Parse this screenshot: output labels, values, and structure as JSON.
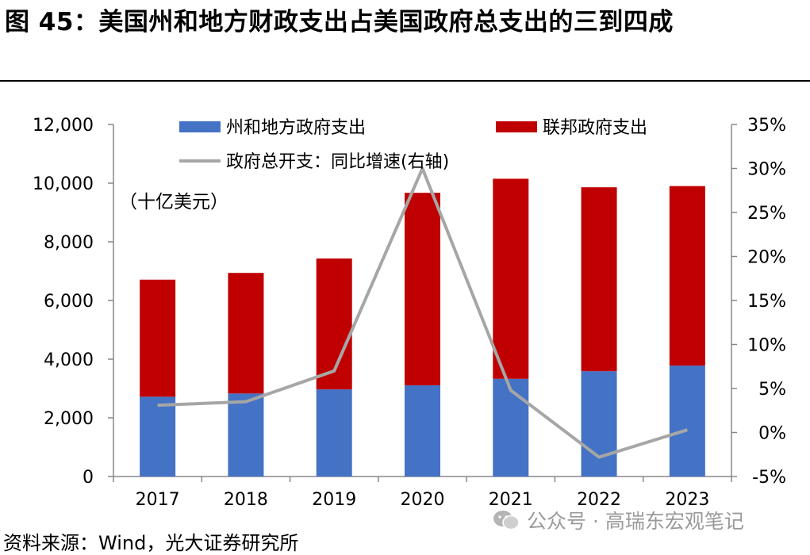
{
  "title": "图 45：美国州和地方财政支出占美国政府总支出的三到四成",
  "chart_data": {
    "type": "bar",
    "stacked": true,
    "categories": [
      "2017",
      "2018",
      "2019",
      "2020",
      "2021",
      "2022",
      "2023"
    ],
    "series": [
      {
        "name": "州和地方政府支出",
        "type": "bar",
        "axis": "left",
        "color": "#4472C4",
        "values": [
          2720,
          2830,
          2970,
          3110,
          3330,
          3590,
          3780
        ]
      },
      {
        "name": "联邦政府支出",
        "type": "bar",
        "axis": "left",
        "color": "#C00000",
        "values": [
          3990,
          4110,
          4460,
          6560,
          6820,
          6270,
          6120
        ]
      },
      {
        "name": "政府总开支：同比增速(右轴)",
        "type": "line",
        "axis": "right",
        "color": "#A6A6A6",
        "values": [
          3.1,
          3.5,
          7.0,
          30.0,
          4.8,
          -2.8,
          0.3
        ]
      }
    ],
    "y_left": {
      "min": 0,
      "max": 12000,
      "step": 2000,
      "ticks": [
        "0",
        "2,000",
        "4,000",
        "6,000",
        "8,000",
        "10,000",
        "12,000"
      ]
    },
    "y_right": {
      "min": -5,
      "max": 35,
      "step": 5,
      "ticks": [
        "-5%",
        "0%",
        "5%",
        "10%",
        "15%",
        "20%",
        "25%",
        "30%",
        "35%"
      ]
    },
    "unit_label": "（十亿美元）",
    "legend_position": "top"
  },
  "source": "资料来源：Wind，光大证券研究所",
  "watermark": "公众号 · 高瑞东宏观笔记"
}
